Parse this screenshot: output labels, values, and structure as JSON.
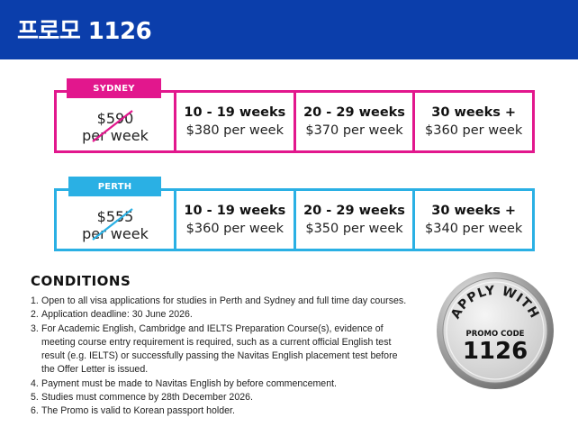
{
  "header": {
    "title": "프로모 1126"
  },
  "sydney": {
    "tag": "SYDNEY",
    "base_price": "$590",
    "base_unit": "per week",
    "tiers": [
      {
        "weeks": "10 - 19 weeks",
        "price": "$380 per week"
      },
      {
        "weeks": "20 - 29 weeks",
        "price": "$370 per week"
      },
      {
        "weeks": "30 weeks +",
        "price": "$360 per week"
      }
    ]
  },
  "perth": {
    "tag": "PERTH",
    "base_price": "$555",
    "base_unit": "per week",
    "tiers": [
      {
        "weeks": "10 - 19 weeks",
        "price": "$360 per week"
      },
      {
        "weeks": "20 - 29 weeks",
        "price": "$350 per week"
      },
      {
        "weeks": "30 weeks +",
        "price": "$340 per week"
      }
    ]
  },
  "conditions": {
    "title": "CONDITIONS",
    "items": [
      {
        "num": "1.",
        "lines": [
          "Open to all visa applications for studies in Perth and Sydney and full time day courses."
        ]
      },
      {
        "num": "2.",
        "lines": [
          "Application deadline: 30 June 2026."
        ]
      },
      {
        "num": "3.",
        "lines": [
          "For Academic English, Cambridge and IELTS Preparation Course(s), evidence of",
          "meeting course entry requirement is required, such as a current official English test",
          "result (e.g. IELTS) or successfully passing the Navitas English placement test before",
          "the Offer Letter is issued."
        ]
      },
      {
        "num": "4.",
        "lines": [
          "Payment must be made to Navitas English by before commencement."
        ]
      },
      {
        "num": "5.",
        "lines": [
          "Studies must commence by 28th December 2026."
        ]
      },
      {
        "num": "6.",
        "lines": [
          "The Promo is valid to Korean passport holder."
        ]
      }
    ]
  },
  "badge": {
    "arc_text": "APPLY WITH",
    "code_label": "PROMO CODE",
    "code": "1126"
  },
  "colors": {
    "header_bg": "#0b3eab",
    "sydney_accent": "#e2178d",
    "perth_accent": "#2ab0e4"
  }
}
